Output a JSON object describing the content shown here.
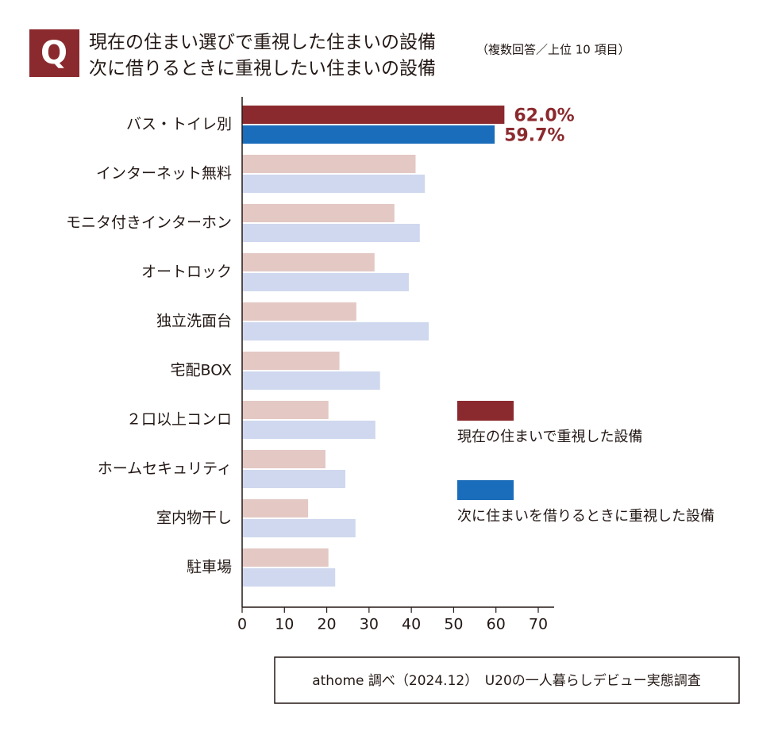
{
  "chart_data": {
    "type": "bar",
    "orientation": "horizontal",
    "badge": "Q",
    "title": [
      "現在の住まい選びで重視した住まいの設備",
      "次に借りるときに重視したい住まいの設備"
    ],
    "subtitle": "（複数回答／上位 10 項目）",
    "categories": [
      "バス・トイレ別",
      "インターネット無料",
      "モニタ付きインターホン",
      "オートロック",
      "独立洗面台",
      "宅配BOX",
      "２口以上コンロ",
      "ホームセキュリティ",
      "室内物干し",
      "駐車場"
    ],
    "series": [
      {
        "name": "現在の住まいで重視した設備",
        "color": "#8b2a2e",
        "muted_color": "#e3c8c4",
        "values": [
          62.0,
          41,
          36,
          31.3,
          27,
          23,
          20.4,
          19.7,
          15.6,
          20.4
        ],
        "value_labels": [
          "62.0%",
          null,
          null,
          null,
          null,
          null,
          null,
          null,
          null,
          null
        ]
      },
      {
        "name": "次に住まいを借りるときに重視した設備",
        "color": "#1a6dba",
        "muted_color": "#cfd8ee",
        "values": [
          59.7,
          43.2,
          42,
          39.4,
          44.1,
          32.6,
          31.5,
          24.4,
          26.8,
          22
        ],
        "value_labels": [
          "59.7%",
          null,
          null,
          null,
          null,
          null,
          null,
          null,
          null,
          null
        ]
      }
    ],
    "highlight_index": 0,
    "value_label_color": "#8b2a2e",
    "xlim": [
      0,
      70
    ],
    "xticks": [
      0,
      10,
      20,
      30,
      40,
      50,
      60,
      70
    ],
    "source": "athome 調べ（2024.12）　U20の一人暮らしデビュー実態調査"
  }
}
